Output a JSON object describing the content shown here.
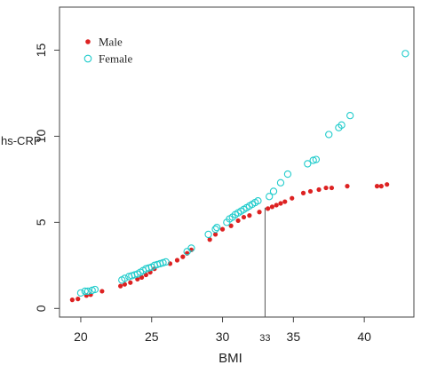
{
  "chart_data": {
    "type": "scatter",
    "xlabel": "BMI",
    "ylabel": "hs-CRP",
    "xlim": [
      18.5,
      43.5
    ],
    "ylim": [
      -0.5,
      17.5
    ],
    "x_ticks": [
      20,
      25,
      30,
      35,
      40
    ],
    "y_ticks": [
      0,
      5,
      10,
      15
    ],
    "grid": false,
    "legend_position": "top-left",
    "reference_line": {
      "x": 33,
      "label": "33"
    },
    "series": [
      {
        "name": "Male",
        "marker": "filled-circle",
        "color": "#dd2222",
        "points": [
          [
            19.4,
            0.5
          ],
          [
            19.8,
            0.55
          ],
          [
            20.4,
            0.75
          ],
          [
            20.7,
            0.8
          ],
          [
            21.5,
            1.0
          ],
          [
            22.8,
            1.3
          ],
          [
            23.1,
            1.4
          ],
          [
            23.5,
            1.5
          ],
          [
            24.0,
            1.7
          ],
          [
            24.3,
            1.8
          ],
          [
            24.6,
            1.95
          ],
          [
            24.9,
            2.1
          ],
          [
            25.2,
            2.3
          ],
          [
            26.3,
            2.6
          ],
          [
            26.8,
            2.8
          ],
          [
            27.2,
            3.0
          ],
          [
            27.5,
            3.2
          ],
          [
            27.8,
            3.4
          ],
          [
            29.1,
            4.0
          ],
          [
            29.5,
            4.3
          ],
          [
            30.0,
            4.6
          ],
          [
            30.6,
            4.8
          ],
          [
            31.1,
            5.1
          ],
          [
            31.5,
            5.3
          ],
          [
            31.9,
            5.4
          ],
          [
            32.6,
            5.6
          ],
          [
            33.2,
            5.8
          ],
          [
            33.5,
            5.9
          ],
          [
            33.8,
            6.0
          ],
          [
            34.1,
            6.1
          ],
          [
            34.4,
            6.2
          ],
          [
            34.9,
            6.4
          ],
          [
            35.7,
            6.7
          ],
          [
            36.2,
            6.8
          ],
          [
            36.8,
            6.9
          ],
          [
            37.3,
            7.0
          ],
          [
            37.7,
            7.0
          ],
          [
            38.8,
            7.1
          ],
          [
            40.9,
            7.1
          ],
          [
            41.2,
            7.1
          ],
          [
            41.6,
            7.2
          ]
        ]
      },
      {
        "name": "Female",
        "marker": "open-circle",
        "color": "#22cccc",
        "points": [
          [
            20.0,
            0.9
          ],
          [
            20.3,
            1.0
          ],
          [
            20.5,
            1.0
          ],
          [
            20.8,
            1.05
          ],
          [
            21.0,
            1.1
          ],
          [
            22.9,
            1.65
          ],
          [
            23.1,
            1.75
          ],
          [
            23.4,
            1.85
          ],
          [
            23.6,
            1.9
          ],
          [
            23.8,
            1.95
          ],
          [
            24.0,
            2.0
          ],
          [
            24.2,
            2.1
          ],
          [
            24.4,
            2.2
          ],
          [
            24.6,
            2.3
          ],
          [
            24.8,
            2.35
          ],
          [
            25.0,
            2.4
          ],
          [
            25.2,
            2.5
          ],
          [
            25.4,
            2.55
          ],
          [
            25.6,
            2.6
          ],
          [
            25.8,
            2.65
          ],
          [
            26.0,
            2.7
          ],
          [
            27.5,
            3.3
          ],
          [
            27.8,
            3.5
          ],
          [
            29.0,
            4.3
          ],
          [
            29.5,
            4.6
          ],
          [
            29.6,
            4.7
          ],
          [
            30.3,
            5.0
          ],
          [
            30.5,
            5.2
          ],
          [
            30.7,
            5.3
          ],
          [
            30.9,
            5.45
          ],
          [
            31.1,
            5.55
          ],
          [
            31.3,
            5.65
          ],
          [
            31.5,
            5.75
          ],
          [
            31.7,
            5.85
          ],
          [
            31.9,
            5.95
          ],
          [
            32.1,
            6.05
          ],
          [
            32.3,
            6.15
          ],
          [
            32.5,
            6.25
          ],
          [
            33.3,
            6.5
          ],
          [
            33.6,
            6.8
          ],
          [
            34.1,
            7.3
          ],
          [
            34.6,
            7.8
          ],
          [
            36.0,
            8.4
          ],
          [
            36.4,
            8.6
          ],
          [
            36.6,
            8.65
          ],
          [
            37.5,
            10.1
          ],
          [
            38.2,
            10.5
          ],
          [
            38.4,
            10.65
          ],
          [
            39.0,
            11.2
          ],
          [
            42.9,
            14.8
          ]
        ]
      }
    ]
  }
}
